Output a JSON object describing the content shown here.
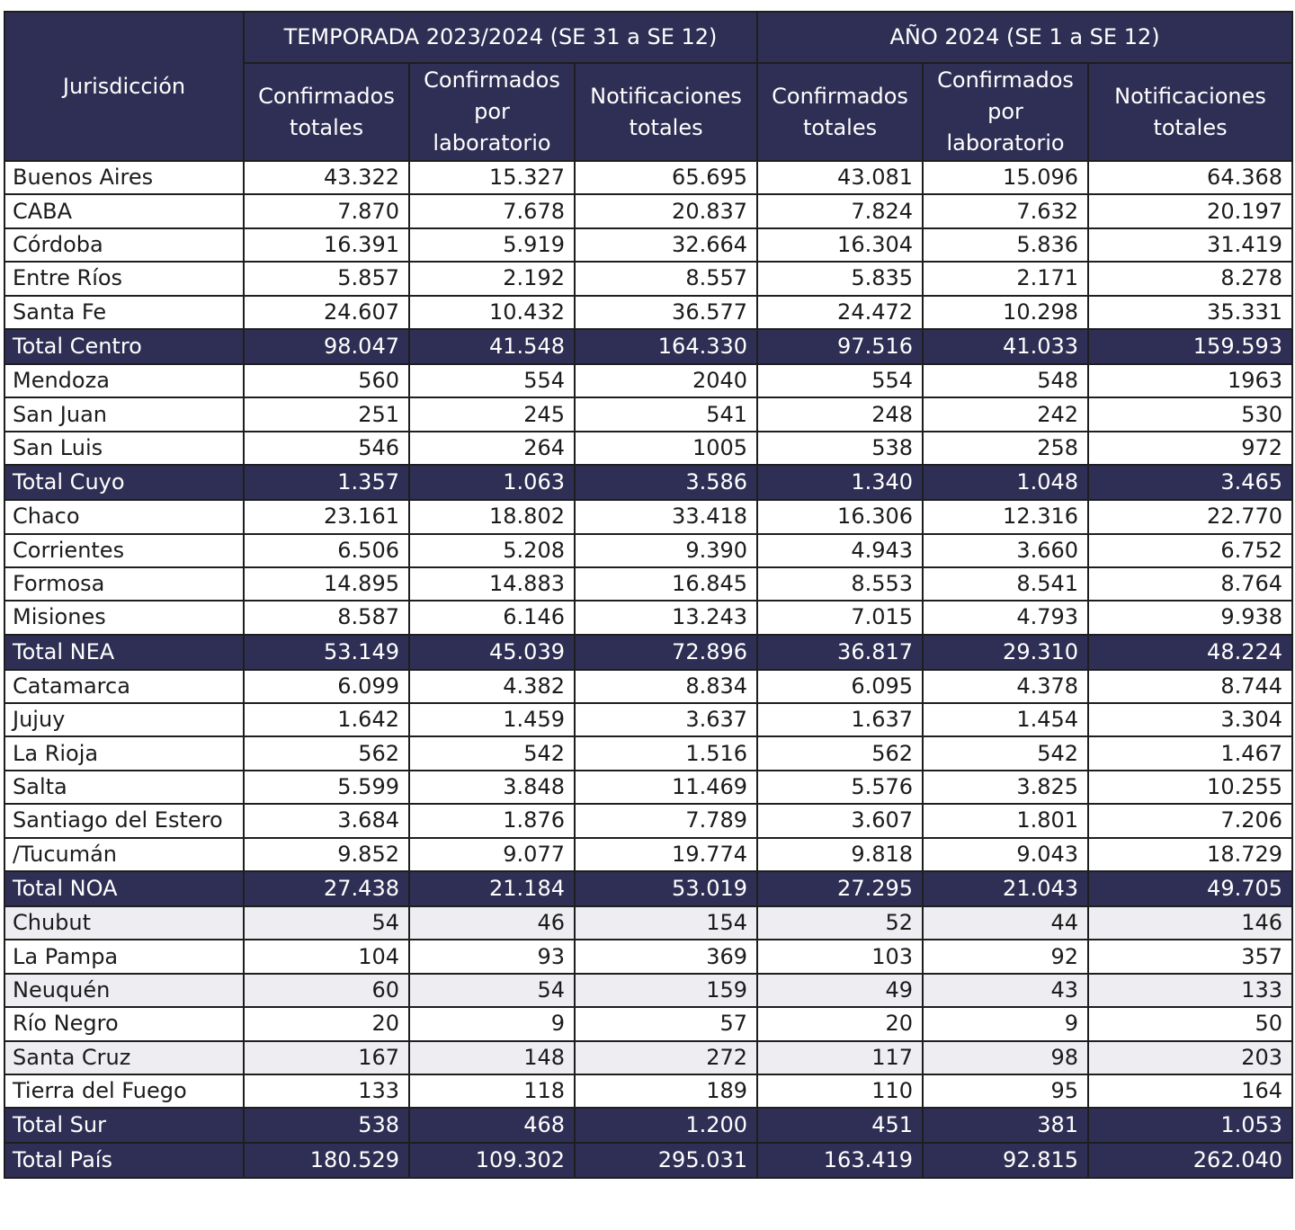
{
  "table": {
    "corner_header": "Jurisdicción",
    "group_headers": [
      "TEMPORADA 2023/2024 (SE 31 a SE 12)",
      "AÑO 2024 (SE 1 a SE 12)"
    ],
    "column_headers": [
      [
        "Confirmados",
        "totales"
      ],
      [
        "Confirmados",
        "por",
        "laboratorio"
      ],
      [
        "Notificaciones",
        "totales"
      ],
      [
        "Confirmados",
        "totales"
      ],
      [
        "Confirmados",
        "por",
        "laboratorio"
      ],
      [
        "Notificaciones",
        "totales"
      ]
    ],
    "rows": [
      {
        "name": "Buenos Aires",
        "values": [
          "43.322",
          "15.327",
          "65.695",
          "43.081",
          "15.096",
          "64.368"
        ],
        "total": false,
        "shaded": false
      },
      {
        "name": "CABA",
        "values": [
          "7.870",
          "7.678",
          "20.837",
          "7.824",
          "7.632",
          "20.197"
        ],
        "total": false,
        "shaded": false
      },
      {
        "name": "Córdoba",
        "values": [
          "16.391",
          "5.919",
          "32.664",
          "16.304",
          "5.836",
          "31.419"
        ],
        "total": false,
        "shaded": false
      },
      {
        "name": "Entre Ríos",
        "values": [
          "5.857",
          "2.192",
          "8.557",
          "5.835",
          "2.171",
          "8.278"
        ],
        "total": false,
        "shaded": false
      },
      {
        "name": "Santa Fe",
        "values": [
          "24.607",
          "10.432",
          "36.577",
          "24.472",
          "10.298",
          "35.331"
        ],
        "total": false,
        "shaded": false
      },
      {
        "name": "Total Centro",
        "values": [
          "98.047",
          "41.548",
          "164.330",
          "97.516",
          "41.033",
          "159.593"
        ],
        "total": true,
        "shaded": false
      },
      {
        "name": "Mendoza",
        "values": [
          "560",
          "554",
          "2040",
          "554",
          "548",
          "1963"
        ],
        "total": false,
        "shaded": false
      },
      {
        "name": "San Juan",
        "values": [
          "251",
          "245",
          "541",
          "248",
          "242",
          "530"
        ],
        "total": false,
        "shaded": false
      },
      {
        "name": "San Luis",
        "values": [
          "546",
          "264",
          "1005",
          "538",
          "258",
          "972"
        ],
        "total": false,
        "shaded": false
      },
      {
        "name": "Total Cuyo",
        "values": [
          "1.357",
          "1.063",
          "3.586",
          "1.340",
          "1.048",
          "3.465"
        ],
        "total": true,
        "shaded": false
      },
      {
        "name": "Chaco",
        "values": [
          "23.161",
          "18.802",
          "33.418",
          "16.306",
          "12.316",
          "22.770"
        ],
        "total": false,
        "shaded": false
      },
      {
        "name": "Corrientes",
        "values": [
          "6.506",
          "5.208",
          "9.390",
          "4.943",
          "3.660",
          "6.752"
        ],
        "total": false,
        "shaded": false
      },
      {
        "name": "Formosa",
        "values": [
          "14.895",
          "14.883",
          "16.845",
          "8.553",
          "8.541",
          "8.764"
        ],
        "total": false,
        "shaded": false
      },
      {
        "name": "Misiones",
        "values": [
          "8.587",
          "6.146",
          "13.243",
          "7.015",
          "4.793",
          "9.938"
        ],
        "total": false,
        "shaded": false
      },
      {
        "name": "Total NEA",
        "values": [
          "53.149",
          "45.039",
          "72.896",
          "36.817",
          "29.310",
          "48.224"
        ],
        "total": true,
        "shaded": false
      },
      {
        "name": "Catamarca",
        "values": [
          "6.099",
          "4.382",
          "8.834",
          "6.095",
          "4.378",
          "8.744"
        ],
        "total": false,
        "shaded": false
      },
      {
        "name": "Jujuy",
        "values": [
          "1.642",
          "1.459",
          "3.637",
          "1.637",
          "1.454",
          "3.304"
        ],
        "total": false,
        "shaded": false
      },
      {
        "name": "La Rioja",
        "values": [
          "562",
          "542",
          "1.516",
          "562",
          "542",
          "1.467"
        ],
        "total": false,
        "shaded": false
      },
      {
        "name": "Salta",
        "values": [
          "5.599",
          "3.848",
          "11.469",
          "5.576",
          "3.825",
          "10.255"
        ],
        "total": false,
        "shaded": false
      },
      {
        "name": "Santiago del Estero",
        "values": [
          "3.684",
          "1.876",
          "7.789",
          "3.607",
          "1.801",
          "7.206"
        ],
        "total": false,
        "shaded": false
      },
      {
        "name": "/Tucumán",
        "values": [
          "9.852",
          "9.077",
          "19.774",
          "9.818",
          "9.043",
          "18.729"
        ],
        "total": false,
        "shaded": false
      },
      {
        "name": "Total NOA",
        "values": [
          "27.438",
          "21.184",
          "53.019",
          "27.295",
          "21.043",
          "49.705"
        ],
        "total": true,
        "shaded": false
      },
      {
        "name": "Chubut",
        "values": [
          "54",
          "46",
          "154",
          "52",
          "44",
          "146"
        ],
        "total": false,
        "shaded": true
      },
      {
        "name": "La Pampa",
        "values": [
          "104",
          "93",
          "369",
          "103",
          "92",
          "357"
        ],
        "total": false,
        "shaded": false
      },
      {
        "name": "Neuquén",
        "values": [
          "60",
          "54",
          "159",
          "49",
          "43",
          "133"
        ],
        "total": false,
        "shaded": true
      },
      {
        "name": "Río Negro",
        "values": [
          "20",
          "9",
          "57",
          "20",
          "9",
          "50"
        ],
        "total": false,
        "shaded": false
      },
      {
        "name": "Santa Cruz",
        "values": [
          "167",
          "148",
          "272",
          "117",
          "98",
          "203"
        ],
        "total": false,
        "shaded": true
      },
      {
        "name": "Tierra del Fuego",
        "values": [
          "133",
          "118",
          "189",
          "110",
          "95",
          "164"
        ],
        "total": false,
        "shaded": false
      },
      {
        "name": "Total Sur",
        "values": [
          "538",
          "468",
          "1.200",
          "451",
          "381",
          "1.053"
        ],
        "total": true,
        "shaded": false
      },
      {
        "name": "Total País",
        "values": [
          "180.529",
          "109.302",
          "295.031",
          "163.419",
          "92.815",
          "262.040"
        ],
        "total": true,
        "shaded": false
      }
    ]
  },
  "colors": {
    "header_bg": "#2f2f55",
    "header_text": "#ffffff",
    "border": "#1e1e1e",
    "shaded_row_bg": "#eeeef2"
  }
}
